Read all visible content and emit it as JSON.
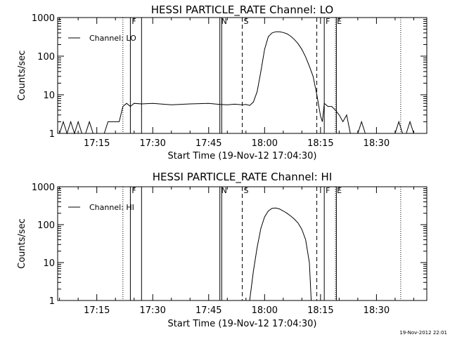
{
  "chart_data": [
    {
      "type": "line",
      "title": "HESSI PARTICLE_RATE Channel: LO",
      "xlabel": "Start Time (19-Nov-12 17:04:30)",
      "ylabel": "Counts/sec",
      "yscale": "log",
      "xlim": [
        "17:04:30",
        "18:43:30"
      ],
      "ylim": [
        1,
        1000
      ],
      "xticks": [
        "17:15",
        "17:30",
        "17:45",
        "18:00",
        "18:15",
        "18:30"
      ],
      "yticks": [
        "1",
        "10",
        "100",
        "1000"
      ],
      "grid": false,
      "legend": "top-left",
      "series": [
        {
          "name": "Channel: LO",
          "color": "#000000",
          "x": [
            "17:05:00",
            "17:06:00",
            "17:07:00",
            "17:08:00",
            "17:09:00",
            "17:10:00",
            "17:11:00",
            "17:12:00",
            "17:13:00",
            "17:14:00",
            "17:15:00",
            "17:17:00",
            "17:18:00",
            "17:19:00",
            "17:20:00",
            "17:21:00",
            "17:22:00",
            "17:23:00",
            "17:24:00",
            "17:25:00",
            "17:27:00",
            "17:30:00",
            "17:35:00",
            "17:40:00",
            "17:45:00",
            "17:48:00",
            "17:50:00",
            "17:52:00",
            "17:54:00",
            "17:55:00",
            "17:56:00",
            "17:57:00",
            "17:58:00",
            "17:59:00",
            "18:00:00",
            "18:01:00",
            "18:02:00",
            "18:03:00",
            "18:04:00",
            "18:05:00",
            "18:06:00",
            "18:07:00",
            "18:08:00",
            "18:09:00",
            "18:10:00",
            "18:11:00",
            "18:12:00",
            "18:13:00",
            "18:14:00",
            "18:15:00",
            "18:15:30",
            "18:16:00",
            "18:17:00",
            "18:18:00",
            "18:19:00",
            "18:20:00",
            "18:21:00",
            "18:22:00",
            "18:23:00",
            "18:24:00",
            "18:25:00",
            "18:26:00",
            "18:27:00",
            "18:28:00",
            "18:29:00",
            "18:30:00",
            "18:31:00",
            "18:32:00",
            "18:33:00",
            "18:34:00",
            "18:35:00",
            "18:36:00",
            "18:37:00",
            "18:38:00",
            "18:39:00",
            "18:40:00",
            "18:41:00"
          ],
          "y": [
            1,
            2,
            1,
            2,
            1,
            2,
            1,
            1,
            2,
            1,
            1,
            1,
            2,
            2,
            2,
            2,
            5,
            6,
            5,
            6,
            5.8,
            6,
            5.5,
            5.8,
            6,
            5.6,
            5.5,
            5.7,
            5.5,
            5.6,
            5.3,
            6.5,
            12,
            40,
            150,
            320,
            400,
            430,
            430,
            410,
            380,
            330,
            270,
            210,
            150,
            95,
            55,
            30,
            10,
            2.8,
            2,
            6,
            5,
            5,
            4,
            3,
            2,
            3,
            1,
            1,
            1,
            2,
            1,
            1,
            1,
            1,
            1,
            1,
            1,
            1,
            1,
            2,
            1,
            1,
            2,
            1,
            1
          ]
        }
      ],
      "markers": [
        {
          "time": "17:22:00",
          "label": "",
          "style": "dotted"
        },
        {
          "time": "17:24:00",
          "label": "F",
          "style": "solid"
        },
        {
          "time": "17:27:00",
          "label": "",
          "style": "solid"
        },
        {
          "time": "17:48:00",
          "label": "N",
          "style": "solid"
        },
        {
          "time": "17:48:30",
          "label": "",
          "style": "solid"
        },
        {
          "time": "17:54:00",
          "label": "S",
          "style": "dashed"
        },
        {
          "time": "18:14:00",
          "label": "",
          "style": "dashed"
        },
        {
          "time": "18:16:00",
          "label": "F",
          "style": "solid"
        },
        {
          "time": "18:19:00",
          "label": "E",
          "style": "dotted"
        },
        {
          "time": "18:19:15",
          "label": "",
          "style": "solid"
        },
        {
          "time": "18:36:30",
          "label": "",
          "style": "dotted"
        }
      ]
    },
    {
      "type": "line",
      "title": "HESSI PARTICLE_RATE Channel: HI",
      "xlabel": "Start Time (19-Nov-12 17:04:30)",
      "ylabel": "Counts/sec",
      "yscale": "log",
      "xlim": [
        "17:04:30",
        "18:43:30"
      ],
      "ylim": [
        1,
        1000
      ],
      "xticks": [
        "17:15",
        "17:30",
        "17:45",
        "18:00",
        "18:15",
        "18:30"
      ],
      "yticks": [
        "1",
        "10",
        "100",
        "1000"
      ],
      "grid": false,
      "legend": "top-left",
      "series": [
        {
          "name": "Channel: HI",
          "color": "#000000",
          "x": [
            "17:56:00",
            "17:57:00",
            "17:58:00",
            "17:59:00",
            "18:00:00",
            "18:01:00",
            "18:02:00",
            "18:03:00",
            "18:04:00",
            "18:05:00",
            "18:06:00",
            "18:07:00",
            "18:08:00",
            "18:09:00",
            "18:10:00",
            "18:11:00",
            "18:12:00",
            "18:12:30"
          ],
          "y": [
            1,
            6,
            25,
            80,
            160,
            230,
            270,
            275,
            260,
            230,
            200,
            170,
            140,
            110,
            75,
            40,
            10,
            1
          ]
        }
      ],
      "markers": [
        {
          "time": "17:22:00",
          "label": "",
          "style": "dotted"
        },
        {
          "time": "17:24:00",
          "label": "F",
          "style": "solid"
        },
        {
          "time": "17:27:00",
          "label": "",
          "style": "solid"
        },
        {
          "time": "17:48:00",
          "label": "N",
          "style": "solid"
        },
        {
          "time": "17:48:30",
          "label": "",
          "style": "solid"
        },
        {
          "time": "17:54:00",
          "label": "S",
          "style": "dashed"
        },
        {
          "time": "18:14:00",
          "label": "",
          "style": "dashed"
        },
        {
          "time": "18:16:00",
          "label": "F",
          "style": "solid"
        },
        {
          "time": "18:19:00",
          "label": "E",
          "style": "dotted"
        },
        {
          "time": "18:19:15",
          "label": "",
          "style": "solid"
        },
        {
          "time": "18:36:30",
          "label": "",
          "style": "dotted"
        }
      ]
    }
  ],
  "footer_stamp": "19-Nov-2012 22:01"
}
